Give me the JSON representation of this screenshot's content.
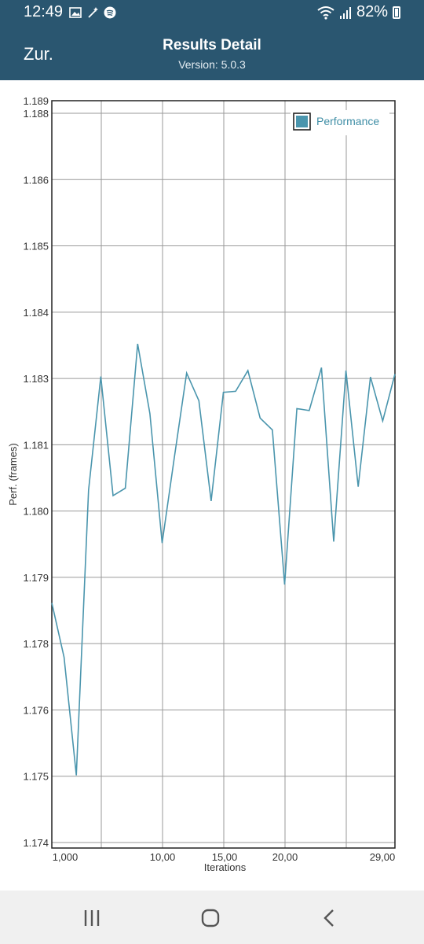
{
  "status_bar": {
    "time": "12:49",
    "battery": "82%",
    "icons": [
      "image-icon",
      "wand-icon",
      "spotify-icon",
      "wifi-icon",
      "signal-icon",
      "battery-icon"
    ]
  },
  "header": {
    "back_label": "Zur.",
    "title": "Results Detail",
    "subtitle": "Version: 5.0.3",
    "background": "#2a5670"
  },
  "chart_data": {
    "type": "line",
    "ylabel": "Perf. (frames)",
    "xlabel": "Iterations",
    "y_tick_labels": [
      "1.189",
      "1.188",
      "1.186",
      "1.185",
      "1.184",
      "1.183",
      "1.181",
      "1.180",
      "1.179",
      "1.178",
      "1.176",
      "1.175",
      "1.174"
    ],
    "x_tick_labels": [
      "1,000",
      "10,00",
      "15,00",
      "20,00",
      "29,00"
    ],
    "ylim": [
      1.174,
      1.18912
    ],
    "xlim": [
      1,
      29
    ],
    "grid": true,
    "legend_position": "top-right",
    "series": [
      {
        "name": "Performance",
        "color": "#4a95ad",
        "x": [
          1,
          2,
          3,
          4,
          5,
          6,
          7,
          8,
          9,
          10,
          11,
          12,
          13,
          14,
          15,
          16,
          17,
          18,
          19,
          20,
          21,
          22,
          23,
          24,
          25,
          26,
          27,
          28,
          29
        ],
        "values": [
          1.17896,
          1.17786,
          1.17547,
          1.18124,
          1.18354,
          1.18113,
          1.18128,
          1.1842,
          1.18279,
          1.18017,
          1.18191,
          1.18361,
          1.18305,
          1.18102,
          1.18322,
          1.18324,
          1.18366,
          1.1827,
          1.18246,
          1.17933,
          1.18289,
          1.18285,
          1.18372,
          1.1802,
          1.18366,
          1.18131,
          1.18353,
          1.18264,
          1.18359
        ]
      }
    ]
  },
  "nav": {
    "recent_icon": "recent-apps-icon",
    "home_icon": "home-icon",
    "back_icon": "back-arrow-icon"
  }
}
